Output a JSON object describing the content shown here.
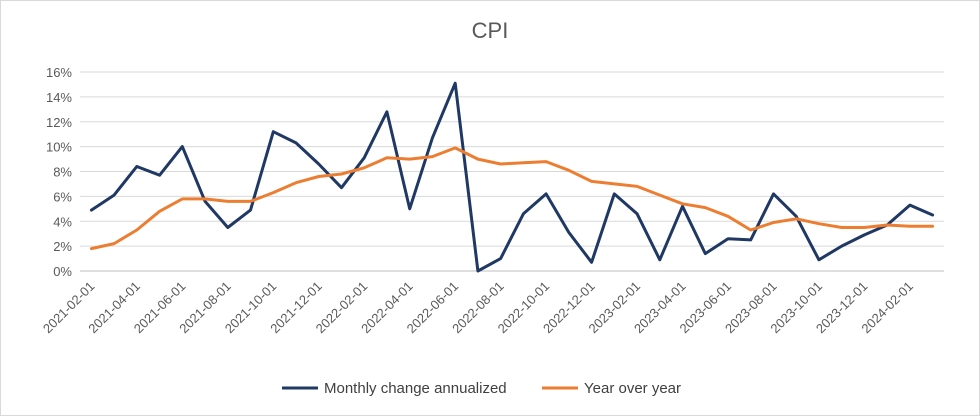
{
  "chart_data": {
    "type": "line",
    "title": "CPI",
    "xlabel": "",
    "ylabel": "",
    "ylim": [
      0,
      16
    ],
    "y_ticks": [
      "0%",
      "2%",
      "4%",
      "6%",
      "8%",
      "10%",
      "12%",
      "14%",
      "16%"
    ],
    "grid": true,
    "legend_position": "bottom",
    "x": [
      "2021-02-01",
      "2021-03-01",
      "2021-04-01",
      "2021-05-01",
      "2021-06-01",
      "2021-07-01",
      "2021-08-01",
      "2021-09-01",
      "2021-10-01",
      "2021-11-01",
      "2021-12-01",
      "2022-01-01",
      "2022-02-01",
      "2022-03-01",
      "2022-04-01",
      "2022-05-01",
      "2022-06-01",
      "2022-07-01",
      "2022-08-01",
      "2022-09-01",
      "2022-10-01",
      "2022-11-01",
      "2022-12-01",
      "2023-01-01",
      "2023-02-01",
      "2023-03-01",
      "2023-04-01",
      "2023-05-01",
      "2023-06-01",
      "2023-07-01",
      "2023-08-01",
      "2023-09-01",
      "2023-10-01",
      "2023-11-01",
      "2023-12-01",
      "2024-01-01",
      "2024-02-01",
      "2024-03-01"
    ],
    "x_tick_labels": [
      "2021-02-01",
      "2021-04-01",
      "2021-06-01",
      "2021-08-01",
      "2021-10-01",
      "2021-12-01",
      "2022-02-01",
      "2022-04-01",
      "2022-06-01",
      "2022-08-01",
      "2022-10-01",
      "2022-12-01",
      "2023-02-01",
      "2023-04-01",
      "2023-06-01",
      "2023-08-01",
      "2023-10-01",
      "2023-12-01",
      "2024-02-01"
    ],
    "series": [
      {
        "name": "Monthly change annualized",
        "color": "#1f3864",
        "values": [
          4.9,
          6.1,
          8.4,
          7.7,
          10.0,
          5.6,
          3.5,
          4.9,
          11.2,
          10.3,
          8.6,
          6.7,
          9.1,
          12.8,
          5.0,
          10.7,
          15.1,
          0.0,
          1.0,
          4.6,
          6.2,
          3.1,
          0.7,
          6.2,
          4.6,
          0.9,
          5.2,
          1.4,
          2.6,
          2.5,
          6.2,
          4.4,
          0.9,
          2.0,
          2.9,
          3.7,
          5.3,
          4.5
        ]
      },
      {
        "name": "Year over year",
        "color": "#ed7d31",
        "values": [
          1.8,
          2.2,
          3.3,
          4.8,
          5.8,
          5.8,
          5.6,
          5.6,
          6.3,
          7.1,
          7.6,
          7.8,
          8.3,
          9.1,
          9.0,
          9.2,
          9.9,
          9.0,
          8.6,
          8.7,
          8.8,
          8.1,
          7.2,
          7.0,
          6.8,
          6.1,
          5.4,
          5.1,
          4.4,
          3.3,
          3.9,
          4.2,
          3.8,
          3.5,
          3.5,
          3.7,
          3.6,
          3.6
        ]
      }
    ]
  }
}
